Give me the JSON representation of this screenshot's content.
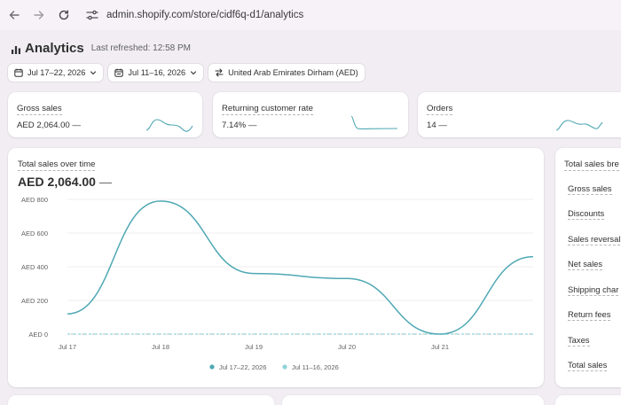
{
  "browser": {
    "url": "admin.shopify.com/store/cidf6q-d1/analytics"
  },
  "page": {
    "title": "Analytics",
    "last_refreshed": "Last refreshed: 12:58 PM"
  },
  "filters": {
    "date_range": "Jul 17–22, 2026",
    "compare_range": "Jul 11–16, 2026",
    "currency": "United Arab Emirates Dirham (AED)"
  },
  "kpis": [
    {
      "label": "Gross sales",
      "value": "AED 2,064.00",
      "change": "—"
    },
    {
      "label": "Returning customer rate",
      "value": "7.14%",
      "change": "—"
    },
    {
      "label": "Orders",
      "value": "14",
      "change": "—"
    }
  ],
  "sales_chart": {
    "title": "Total sales over time",
    "total": "AED 2,064.00",
    "change": "—"
  },
  "colors": {
    "primary_series": "#4fa8b3",
    "comparison_series": "#8fd3da",
    "accent_link": "#2a5c9a"
  },
  "chart_data": {
    "type": "line",
    "title": "Total sales over time",
    "x": [
      "Jul 17",
      "Jul 18",
      "Jul 19",
      "Jul 20",
      "Jul 21",
      "Jul 22"
    ],
    "xlabels": [
      "Jul 17",
      "Jul 18",
      "Jul 19",
      "Jul 20",
      "Jul 21",
      ""
    ],
    "yticks": [
      "AED 0",
      "AED 200",
      "AED 400",
      "AED 600",
      "AED 800"
    ],
    "ylim": [
      0,
      800
    ],
    "series": [
      {
        "name": "Jul 17–22, 2026",
        "values": [
          120,
          790,
          360,
          330,
          0,
          460
        ]
      },
      {
        "name": "Jul 11–16, 2026",
        "values": [
          0,
          0,
          0,
          0,
          0,
          0
        ]
      }
    ],
    "grid": true,
    "legend": "bottom"
  },
  "breakdown": {
    "title": "Total sales bre",
    "items": [
      "Gross sales",
      "Discounts",
      "Sales reversal",
      "Net sales",
      "Shipping char",
      "Return fees",
      "Taxes",
      "Total sales"
    ]
  }
}
